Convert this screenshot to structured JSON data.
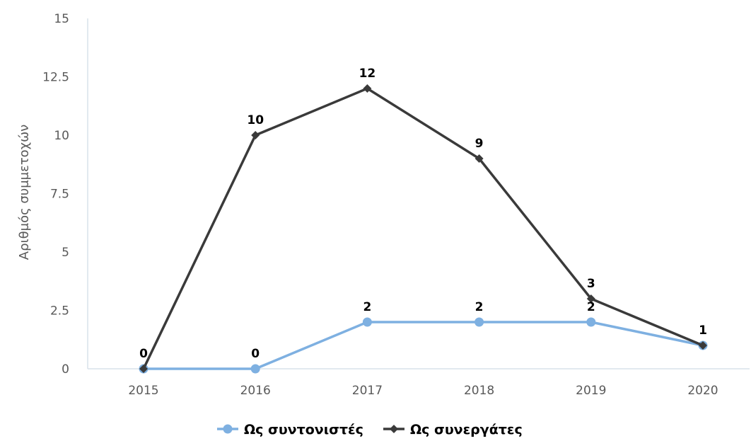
{
  "chart_data": {
    "type": "line",
    "title": "",
    "xlabel": "",
    "ylabel": "Αριθμός συμμετοχών",
    "categories": [
      "2015",
      "2016",
      "2017",
      "2018",
      "2019",
      "2020"
    ],
    "ylim": [
      0,
      15
    ],
    "yticks": [
      "0",
      "2.5",
      "5",
      "7.5",
      "10",
      "12.5",
      "15"
    ],
    "ytick_values": [
      0,
      2.5,
      5,
      7.5,
      10,
      12.5,
      15
    ],
    "grid": false,
    "legend_position": "bottom",
    "series": [
      {
        "name": "Ως συντονιστές",
        "values": [
          0,
          0,
          2,
          2,
          2,
          1
        ],
        "labels": [
          "",
          "0",
          "2",
          "2",
          "2",
          ""
        ],
        "color": "#7eb0e1",
        "marker": "circle"
      },
      {
        "name": "Ως συνεργάτες",
        "values": [
          0,
          10,
          12,
          9,
          3,
          1
        ],
        "labels": [
          "0",
          "10",
          "12",
          "9",
          "3",
          "1"
        ],
        "color": "#3a3a3a",
        "marker": "diamond"
      }
    ]
  }
}
